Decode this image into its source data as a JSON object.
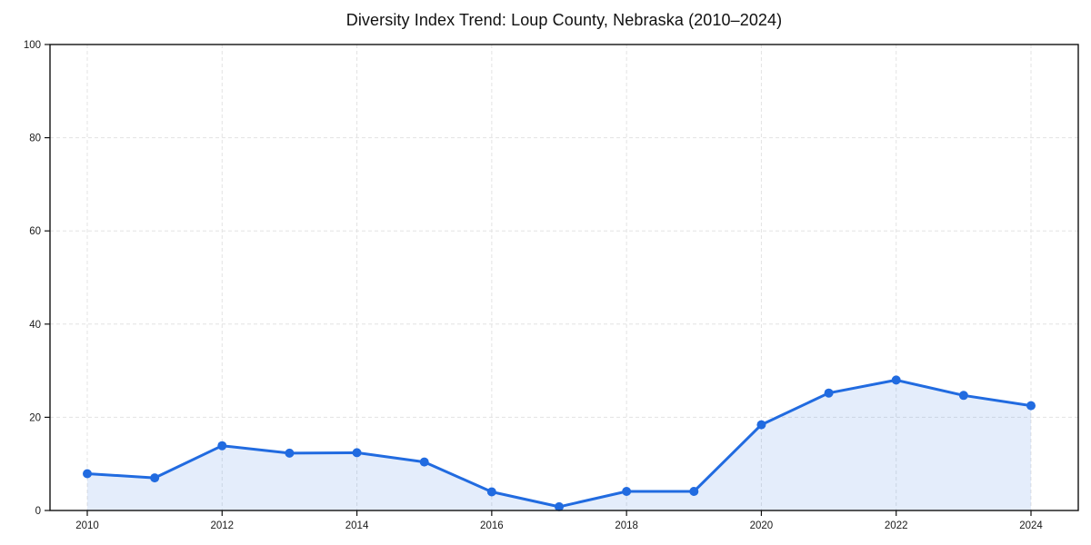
{
  "chart_data": {
    "type": "line",
    "title": "Diversity Index Trend: Loup County, Nebraska (2010–2024)",
    "xlabel": "",
    "ylabel": "",
    "x": [
      2010,
      2011,
      2012,
      2013,
      2014,
      2015,
      2016,
      2017,
      2018,
      2019,
      2020,
      2021,
      2022,
      2023,
      2024
    ],
    "values": [
      7.9,
      7.0,
      13.9,
      12.3,
      12.4,
      10.4,
      4.0,
      0.8,
      4.1,
      4.1,
      18.4,
      25.2,
      28.0,
      24.7,
      22.5
    ],
    "xticks": [
      2010,
      2012,
      2014,
      2016,
      2018,
      2020,
      2022,
      2024
    ],
    "yticks": [
      0,
      20,
      40,
      60,
      80,
      100
    ],
    "ylim": [
      0,
      100
    ],
    "grid": "dashed-both-axes",
    "legend": "none",
    "marker": "circle",
    "colors": {
      "line": "#216be0",
      "fill_opacity": "0.12",
      "grid": "#e3e3e3",
      "axis": "#111111",
      "text": "#1a1a1a",
      "background": "#ffffff"
    }
  }
}
